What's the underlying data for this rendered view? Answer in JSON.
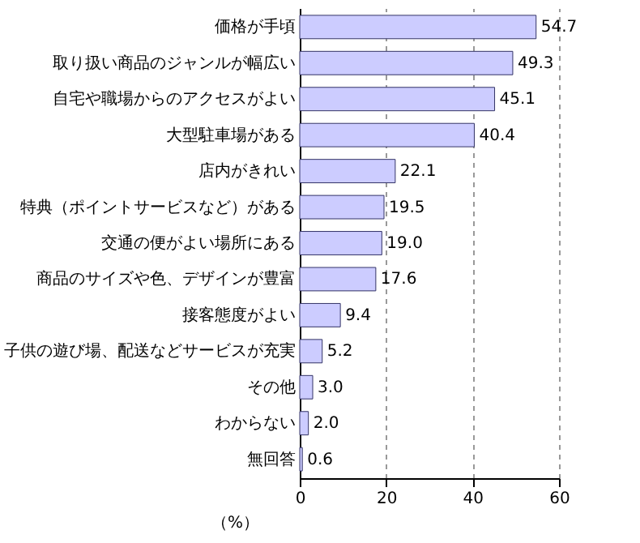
{
  "chart_data": {
    "type": "bar",
    "orientation": "horizontal",
    "xlabel": "（%）",
    "categories": [
      "価格が手頃",
      "取り扱い商品のジャンルが幅広い",
      "自宅や職場からのアクセスがよい",
      "大型駐車場がある",
      "店内がきれい",
      "特典（ポイントサービスなど）がある",
      "交通の便がよい場所にある",
      "商品のサイズや色、デザインが豊富",
      "接客態度がよい",
      "子供の遊び場、配送などサービスが充実",
      "その他",
      "わからない",
      "無回答"
    ],
    "values": [
      54.7,
      49.3,
      45.1,
      40.4,
      22.1,
      19.5,
      19.0,
      17.6,
      9.4,
      5.2,
      3.0,
      2.0,
      0.6
    ],
    "value_labels": [
      "54.7",
      "49.3",
      "45.1",
      "40.4",
      "22.1",
      "19.5",
      "19.0",
      "17.6",
      "9.4",
      "5.2",
      "3.0",
      "2.0",
      "0.6"
    ],
    "color": "#ccccff",
    "xlim": [
      0,
      60
    ],
    "xticks": [
      0,
      20,
      40,
      60
    ],
    "grid": "x"
  }
}
